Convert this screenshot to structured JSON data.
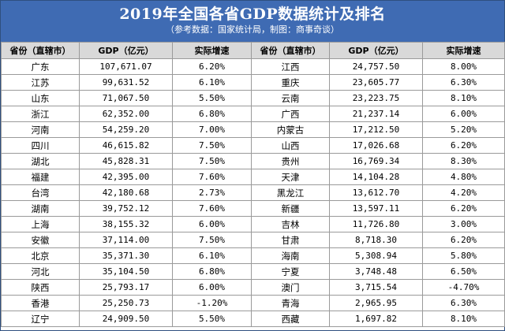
{
  "header": {
    "title": "2019年全国各省GDP数据统计及排名",
    "subtitle": "（参考数据：国家统计局，制图：商事奇谈）"
  },
  "columns": [
    "省份（直辖市）",
    "GDP（亿元）",
    "实际增速",
    "省份（直辖市）",
    "GDP（亿元）",
    "实际增速"
  ],
  "rows": [
    {
      "left": [
        "广东",
        "107,671.07",
        "6.20%"
      ],
      "right": [
        "江西",
        "24,757.50",
        "8.00%"
      ]
    },
    {
      "left": [
        "江苏",
        "99,631.52",
        "6.10%"
      ],
      "right": [
        "重庆",
        "23,605.77",
        "6.30%"
      ]
    },
    {
      "left": [
        "山东",
        "71,067.50",
        "5.50%"
      ],
      "right": [
        "云南",
        "23,223.75",
        "8.10%"
      ]
    },
    {
      "left": [
        "浙江",
        "62,352.00",
        "6.80%"
      ],
      "right": [
        "广西",
        "21,237.14",
        "6.00%"
      ]
    },
    {
      "left": [
        "河南",
        "54,259.20",
        "7.00%"
      ],
      "right": [
        "内蒙古",
        "17,212.50",
        "5.20%"
      ]
    },
    {
      "left": [
        "四川",
        "46,615.82",
        "7.50%"
      ],
      "right": [
        "山西",
        "17,026.68",
        "6.20%"
      ]
    },
    {
      "left": [
        "湖北",
        "45,828.31",
        "7.50%"
      ],
      "right": [
        "贵州",
        "16,769.34",
        "8.30%"
      ]
    },
    {
      "left": [
        "福建",
        "42,395.00",
        "7.60%"
      ],
      "right": [
        "天津",
        "14,104.28",
        "4.80%"
      ]
    },
    {
      "left": [
        "台湾",
        "42,180.68",
        "2.73%"
      ],
      "right": [
        "黑龙江",
        "13,612.70",
        "4.20%"
      ]
    },
    {
      "left": [
        "湖南",
        "39,752.12",
        "7.60%"
      ],
      "right": [
        "新疆",
        "13,597.11",
        "6.20%"
      ]
    },
    {
      "left": [
        "上海",
        "38,155.32",
        "6.00%"
      ],
      "right": [
        "吉林",
        "11,726.80",
        "3.00%"
      ]
    },
    {
      "left": [
        "安徽",
        "37,114.00",
        "7.50%"
      ],
      "right": [
        "甘肃",
        "8,718.30",
        "6.20%"
      ]
    },
    {
      "left": [
        "北京",
        "35,371.30",
        "6.10%"
      ],
      "right": [
        "海南",
        "5,308.94",
        "5.80%"
      ]
    },
    {
      "left": [
        "河北",
        "35,104.50",
        "6.80%"
      ],
      "right": [
        "宁夏",
        "3,748.48",
        "6.50%"
      ]
    },
    {
      "left": [
        "陕西",
        "25,793.17",
        "6.00%"
      ],
      "right": [
        "澳门",
        "3,715.54",
        "-4.70%"
      ]
    },
    {
      "left": [
        "香港",
        "25,250.73",
        "-1.20%"
      ],
      "right": [
        "青海",
        "2,965.95",
        "6.30%"
      ]
    },
    {
      "left": [
        "辽宁",
        "24,909.50",
        "5.50%"
      ],
      "right": [
        "西藏",
        "1,697.82",
        "8.10%"
      ]
    }
  ]
}
